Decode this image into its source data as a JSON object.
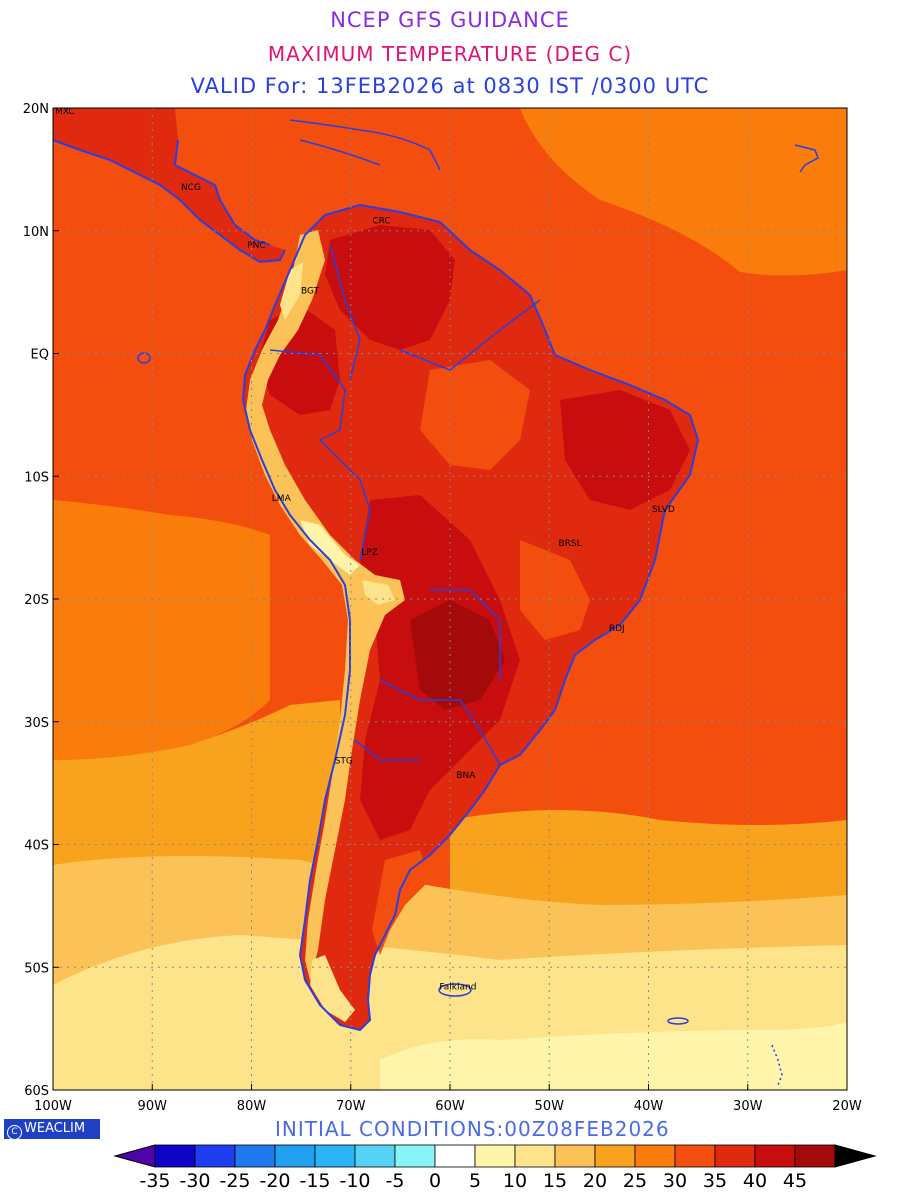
{
  "header": {
    "line1": "NCEP GFS GUIDANCE",
    "line2": "MAXIMUM TEMPERATURE (DEG C)",
    "line3": "VALID For: 13FEB2026 at 0830 IST /0300 UTC"
  },
  "footer": {
    "initial_conditions": "INITIAL CONDITIONS:00Z08FEB2026",
    "logo_text": "WEACLIM",
    "logo_symbol": "C"
  },
  "map": {
    "lat_range": [
      -60,
      20
    ],
    "lon_range": [
      -100,
      -20
    ],
    "lat_ticks": [
      {
        "lat": 20,
        "label": "20N"
      },
      {
        "lat": 10,
        "label": "10N"
      },
      {
        "lat": 0,
        "label": "EQ"
      },
      {
        "lat": -10,
        "label": "10S"
      },
      {
        "lat": -20,
        "label": "20S"
      },
      {
        "lat": -30,
        "label": "30S"
      },
      {
        "lat": -40,
        "label": "40S"
      },
      {
        "lat": -50,
        "label": "50S"
      },
      {
        "lat": -60,
        "label": "60S"
      }
    ],
    "lon_ticks": [
      {
        "lon": -100,
        "label": "100W"
      },
      {
        "lon": -90,
        "label": "90W"
      },
      {
        "lon": -80,
        "label": "80W"
      },
      {
        "lon": -70,
        "label": "70W"
      },
      {
        "lon": -60,
        "label": "60W"
      },
      {
        "lon": -50,
        "label": "50W"
      },
      {
        "lon": -40,
        "label": "40W"
      },
      {
        "lon": -30,
        "label": "30W"
      },
      {
        "lon": -20,
        "label": "20W"
      }
    ],
    "cities": [
      {
        "label": "MXC",
        "lon": -98.8,
        "lat": 19.5
      },
      {
        "label": "NCG",
        "lon": -86.1,
        "lat": 13.3
      },
      {
        "label": "CRC",
        "lon": -66.9,
        "lat": 10.6
      },
      {
        "label": "PNC",
        "lon": -79.5,
        "lat": 8.6
      },
      {
        "label": "BGT",
        "lon": -74.1,
        "lat": 4.9
      },
      {
        "label": "LMA",
        "lon": -77.0,
        "lat": -12.0
      },
      {
        "label": "LPZ",
        "lon": -68.1,
        "lat": -16.4
      },
      {
        "label": "SLVD",
        "lon": -38.5,
        "lat": -12.9
      },
      {
        "label": "BRSL",
        "lon": -47.9,
        "lat": -15.7
      },
      {
        "label": "RDJ",
        "lon": -43.2,
        "lat": -22.6
      },
      {
        "label": "STG",
        "lon": -70.7,
        "lat": -33.4
      },
      {
        "label": "BNA",
        "lon": -58.4,
        "lat": -34.6
      },
      {
        "label": "Falkland",
        "lon": -59.2,
        "lat": -51.8
      }
    ]
  },
  "legend": {
    "labels": [
      "-35",
      "-30",
      "-25",
      "-20",
      "-15",
      "-10",
      "-5",
      "0",
      "5",
      "10",
      "15",
      "20",
      "25",
      "30",
      "35",
      "40",
      "45"
    ],
    "colors": [
      "#0d04c8",
      "#1e3cf0",
      "#1e78f0",
      "#1fa0f0",
      "#28b4f5",
      "#55d2f5",
      "#87f5f5",
      "#ffffff",
      "#fff5aa",
      "#fde38a",
      "#fbc357",
      "#f9a21e",
      "#fa7d0b",
      "#f44e0e",
      "#df2a10",
      "#c70d0d",
      "#a50a0a"
    ],
    "under_color": "#4d05a8",
    "over_color": "#000000"
  },
  "colors": {
    "ocean_hot": "#f44e0e",
    "ocean_warm": "#fa7d0b",
    "ocean_mild": "#f9a21e",
    "ocean_cool": "#fbc357",
    "ocean_cold": "#fde38a",
    "ocean_coldest": "#fff5aa",
    "land_hot": "#df2a10",
    "land_hotter": "#c70d0d",
    "land_hottest": "#a50a0a",
    "coast": "#2a3fe0"
  }
}
